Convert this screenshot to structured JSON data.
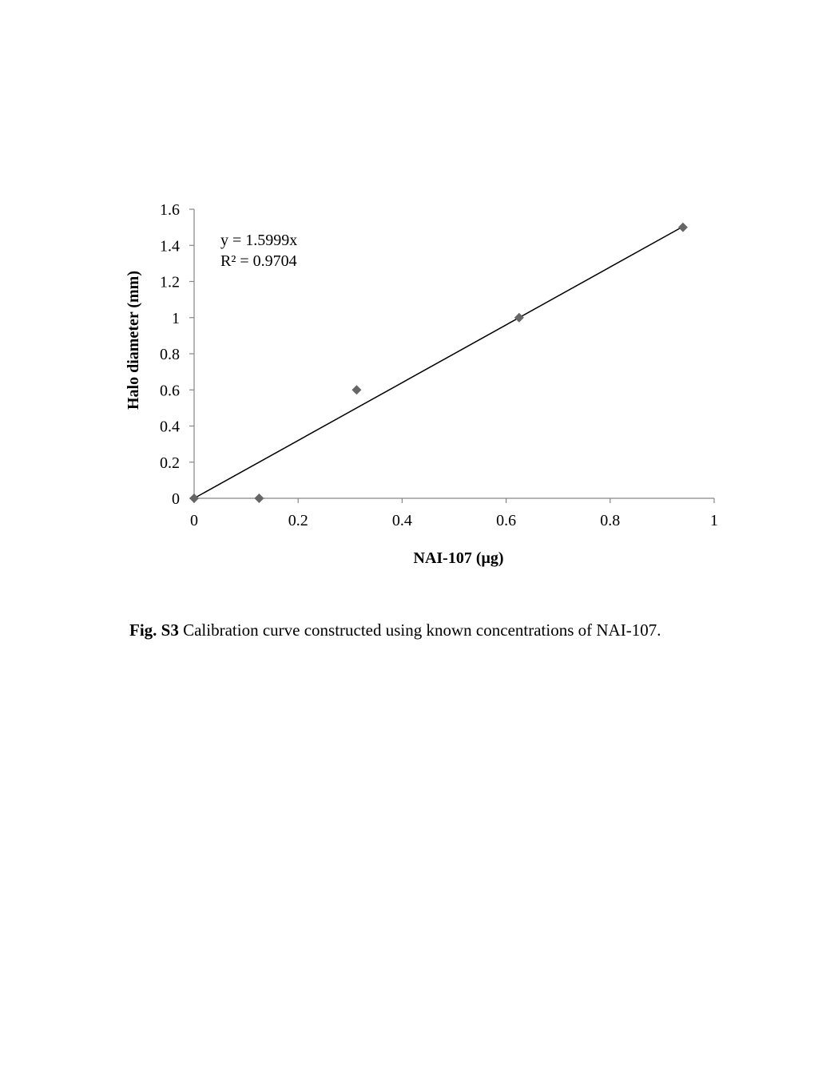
{
  "chart_data": {
    "type": "scatter",
    "xlabel": "NAI-107 (μg)",
    "ylabel": "Halo diameter  (mm)",
    "xlim": [
      0,
      1
    ],
    "ylim": [
      0,
      1.6
    ],
    "x_ticks": [
      0,
      0.2,
      0.4,
      0.6,
      0.8,
      1
    ],
    "y_ticks": [
      0,
      0.2,
      0.4,
      0.6,
      0.8,
      1,
      1.2,
      1.4,
      1.6
    ],
    "x_tick_labels": [
      "0",
      "0.2",
      "0.4",
      "0.6",
      "0.8",
      "1"
    ],
    "y_tick_labels": [
      "0",
      "0.2",
      "0.4",
      "0.6",
      "0.8",
      "1",
      "1.2",
      "1.4",
      "1.6"
    ],
    "grid": false,
    "legend": "none",
    "series": [
      {
        "marker": "diamond",
        "color": "#666666",
        "points": [
          {
            "x": 0,
            "y": 0
          },
          {
            "x": 0.125,
            "y": 0
          },
          {
            "x": 0.3125,
            "y": 0.6
          },
          {
            "x": 0.625,
            "y": 1.0
          },
          {
            "x": 0.94,
            "y": 1.5
          }
        ]
      }
    ],
    "trendline": {
      "type": "linear",
      "slope": 1.5999,
      "intercept": 0,
      "x_range": [
        0,
        0.94
      ],
      "color": "#000000"
    },
    "annotations": {
      "equation": "y = 1.5999x",
      "r_squared": "R² = 0.9704"
    }
  },
  "caption": {
    "label": "Fig. S3",
    "text": " Calibration curve constructed using known concentrations of NAI-107."
  }
}
